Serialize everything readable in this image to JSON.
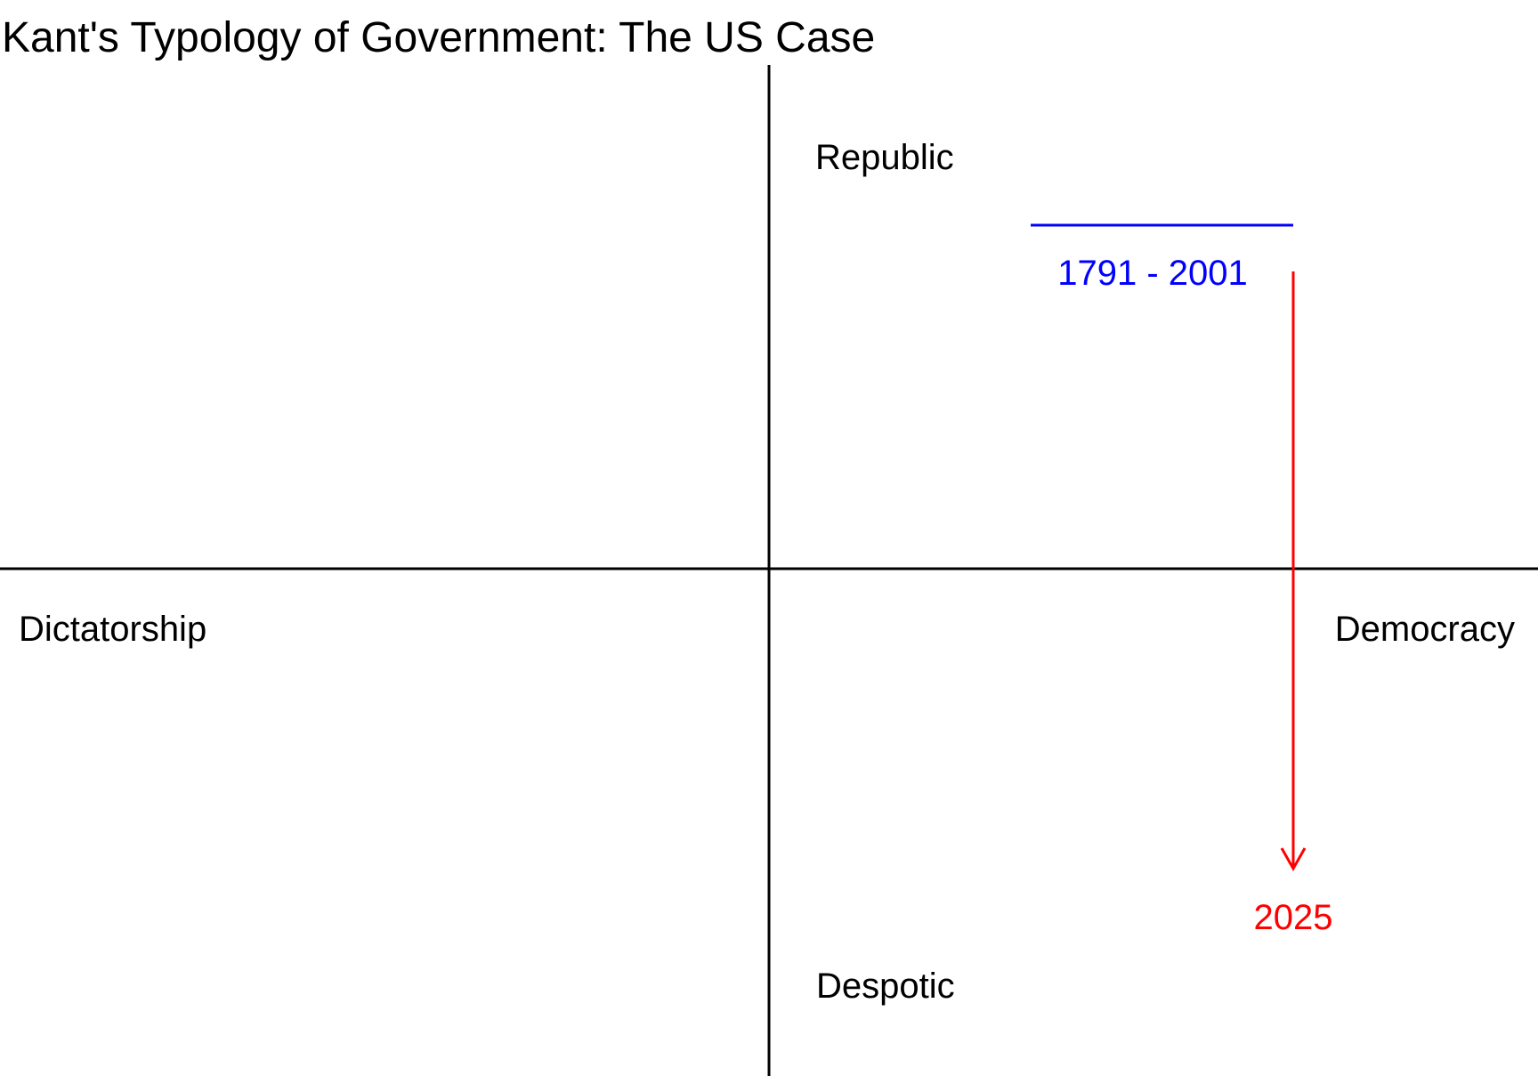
{
  "diagram": {
    "title": "Kant's Typology of Government: The US Case",
    "axes": {
      "top_label": "Republic",
      "bottom_label": "Despotic",
      "left_label": "Dictatorship",
      "right_label": "Democracy"
    },
    "period": {
      "label": "1791 - 2001",
      "color": "#0000ff"
    },
    "current": {
      "label": "2025",
      "color": "#ff0000"
    },
    "axis_color": "#000000"
  }
}
